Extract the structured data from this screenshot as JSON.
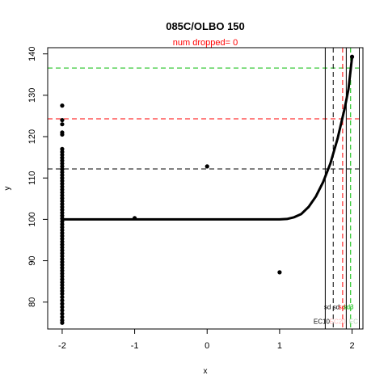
{
  "chart_data": {
    "type": "scatter",
    "title": "085C/OLBO 150",
    "subtitle": "num dropped= 0",
    "xlabel": "x",
    "ylabel": "y",
    "xlim": [
      -2.2,
      2.15
    ],
    "ylim": [
      73.5,
      141.5
    ],
    "xticks": [
      -2,
      -1,
      0,
      1,
      2
    ],
    "yticks": [
      80,
      90,
      100,
      110,
      120,
      130,
      140
    ],
    "grid": false,
    "colors": {
      "title": "#000000",
      "subtitle": "#ff0000",
      "points": "#000000",
      "curve": "#000000",
      "black_line": "#000000",
      "red_line": "#ff0000",
      "green_line": "#00bb00"
    },
    "points": [
      {
        "x": -2,
        "y": 127.5
      },
      {
        "x": -2,
        "y": 124
      },
      {
        "x": -2,
        "y": 123
      },
      {
        "x": -2,
        "y": 121
      },
      {
        "x": -2,
        "y": 120.5
      },
      {
        "x": -2,
        "y": 117
      },
      {
        "x": -2,
        "y": 116.3
      },
      {
        "x": -2,
        "y": 115.6
      },
      {
        "x": -2,
        "y": 114.9
      },
      {
        "x": -2,
        "y": 114.2
      },
      {
        "x": -2,
        "y": 113.5
      },
      {
        "x": -2,
        "y": 112.8
      },
      {
        "x": -2,
        "y": 112.1
      },
      {
        "x": -2,
        "y": 111.4
      },
      {
        "x": -2,
        "y": 110.7
      },
      {
        "x": -2,
        "y": 110
      },
      {
        "x": -2,
        "y": 109.3
      },
      {
        "x": -2,
        "y": 108.6
      },
      {
        "x": -2,
        "y": 107.9
      },
      {
        "x": -2,
        "y": 107.2
      },
      {
        "x": -2,
        "y": 106.5
      },
      {
        "x": -2,
        "y": 105.8
      },
      {
        "x": -2,
        "y": 105.1
      },
      {
        "x": -2,
        "y": 104.4
      },
      {
        "x": -2,
        "y": 103.7
      },
      {
        "x": -2,
        "y": 103
      },
      {
        "x": -2,
        "y": 102.3
      },
      {
        "x": -2,
        "y": 101.6
      },
      {
        "x": -2,
        "y": 100.9
      },
      {
        "x": -2,
        "y": 100.2
      },
      {
        "x": -2,
        "y": 99.5
      },
      {
        "x": -2,
        "y": 98.8
      },
      {
        "x": -2,
        "y": 98.1
      },
      {
        "x": -2,
        "y": 97.4
      },
      {
        "x": -2,
        "y": 96.7
      },
      {
        "x": -2,
        "y": 96
      },
      {
        "x": -2,
        "y": 95.3
      },
      {
        "x": -2,
        "y": 94.6
      },
      {
        "x": -2,
        "y": 93.9
      },
      {
        "x": -2,
        "y": 93.2
      },
      {
        "x": -2,
        "y": 92.5
      },
      {
        "x": -2,
        "y": 91.8
      },
      {
        "x": -2,
        "y": 91.1
      },
      {
        "x": -2,
        "y": 90.4
      },
      {
        "x": -2,
        "y": 89.7
      },
      {
        "x": -2,
        "y": 89
      },
      {
        "x": -2,
        "y": 88.3
      },
      {
        "x": -2,
        "y": 87.6
      },
      {
        "x": -2,
        "y": 86.9
      },
      {
        "x": -2,
        "y": 86.2
      },
      {
        "x": -2,
        "y": 85.5
      },
      {
        "x": -2,
        "y": 84.8
      },
      {
        "x": -2,
        "y": 84.1
      },
      {
        "x": -2,
        "y": 83.4
      },
      {
        "x": -2,
        "y": 82.7
      },
      {
        "x": -2,
        "y": 82
      },
      {
        "x": -2,
        "y": 81.2
      },
      {
        "x": -2,
        "y": 80.4
      },
      {
        "x": -2,
        "y": 79.6
      },
      {
        "x": -2,
        "y": 78.8
      },
      {
        "x": -2,
        "y": 78
      },
      {
        "x": -2,
        "y": 77.2
      },
      {
        "x": -2,
        "y": 76.4
      },
      {
        "x": -2,
        "y": 75.6
      },
      {
        "x": -2,
        "y": 75
      },
      {
        "x": -1,
        "y": 100.3
      },
      {
        "x": 0,
        "y": 112.8
      },
      {
        "x": 1,
        "y": 87.2
      },
      {
        "x": 2,
        "y": 139.3
      }
    ],
    "curve": [
      {
        "x": -2,
        "y": 100
      },
      {
        "x": 1,
        "y": 100
      },
      {
        "x": 1.1,
        "y": 100.1
      },
      {
        "x": 1.2,
        "y": 100.5
      },
      {
        "x": 1.3,
        "y": 101.3
      },
      {
        "x": 1.4,
        "y": 103
      },
      {
        "x": 1.5,
        "y": 105.5
      },
      {
        "x": 1.6,
        "y": 109
      },
      {
        "x": 1.7,
        "y": 113.5
      },
      {
        "x": 1.8,
        "y": 119.5
      },
      {
        "x": 1.9,
        "y": 127
      },
      {
        "x": 1.95,
        "y": 131.5
      },
      {
        "x": 2,
        "y": 139.3
      }
    ],
    "hlines": [
      {
        "y": 112.2,
        "color": "#000000",
        "dash": true
      },
      {
        "y": 124.3,
        "color": "#ff0000",
        "dash": true
      },
      {
        "y": 136.6,
        "color": "#00bb00",
        "dash": true
      }
    ],
    "vlines": [
      {
        "x": 1.63,
        "color": "#000000",
        "dash": false
      },
      {
        "x": 1.74,
        "color": "#000000",
        "dash": true
      },
      {
        "x": 1.87,
        "color": "#ff0000",
        "dash": true
      },
      {
        "x": 1.92,
        "color": "#000000",
        "dash": false
      },
      {
        "x": 1.98,
        "color": "#00bb00",
        "dash": true
      },
      {
        "x": 2.1,
        "color": "#000000",
        "dash": false
      }
    ],
    "marker_labels": [
      {
        "text": "sd",
        "x": 1.66,
        "y": 78.3,
        "color": "#000000"
      },
      {
        "text": "sd",
        "x": 1.78,
        "y": 78.3,
        "color": "#000000"
      },
      {
        "text": "sd",
        "x": 1.86,
        "y": 78.3,
        "color": "#ff0000"
      },
      {
        "text": "sd3",
        "x": 1.95,
        "y": 78.3,
        "color": "#00bb00"
      },
      {
        "text": "EC10",
        "x": 1.58,
        "y": 74.8,
        "color": "#000000"
      },
      {
        "text": "EC20",
        "x": 1.8,
        "y": 74.8,
        "color": "#ffbbbb"
      },
      {
        "text": "EC",
        "x": 2.02,
        "y": 74.8,
        "color": "#bbddbb"
      }
    ]
  }
}
